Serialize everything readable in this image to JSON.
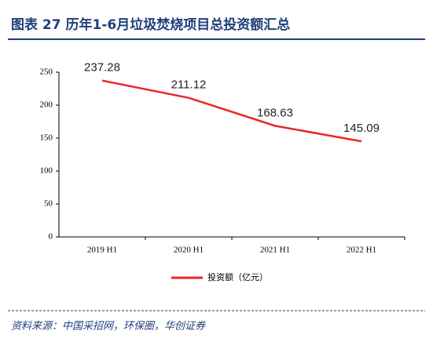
{
  "chart_data": {
    "type": "line",
    "title": "图表 27   历年1-6月垃圾焚烧项目总投资额汇总",
    "source": "资料来源：中国采招网，环保圈，华创证券",
    "categories": [
      "2019 H1",
      "2020 H1",
      "2021 H1",
      "2022 H1"
    ],
    "series": [
      {
        "name": "投资额（亿元）",
        "color": "#e8262a",
        "values": [
          237.28,
          211.12,
          168.63,
          145.09
        ]
      }
    ],
    "ylim": [
      0,
      250
    ],
    "yticks": [
      0,
      50,
      100,
      150,
      200,
      250
    ],
    "legend": "bottom"
  }
}
